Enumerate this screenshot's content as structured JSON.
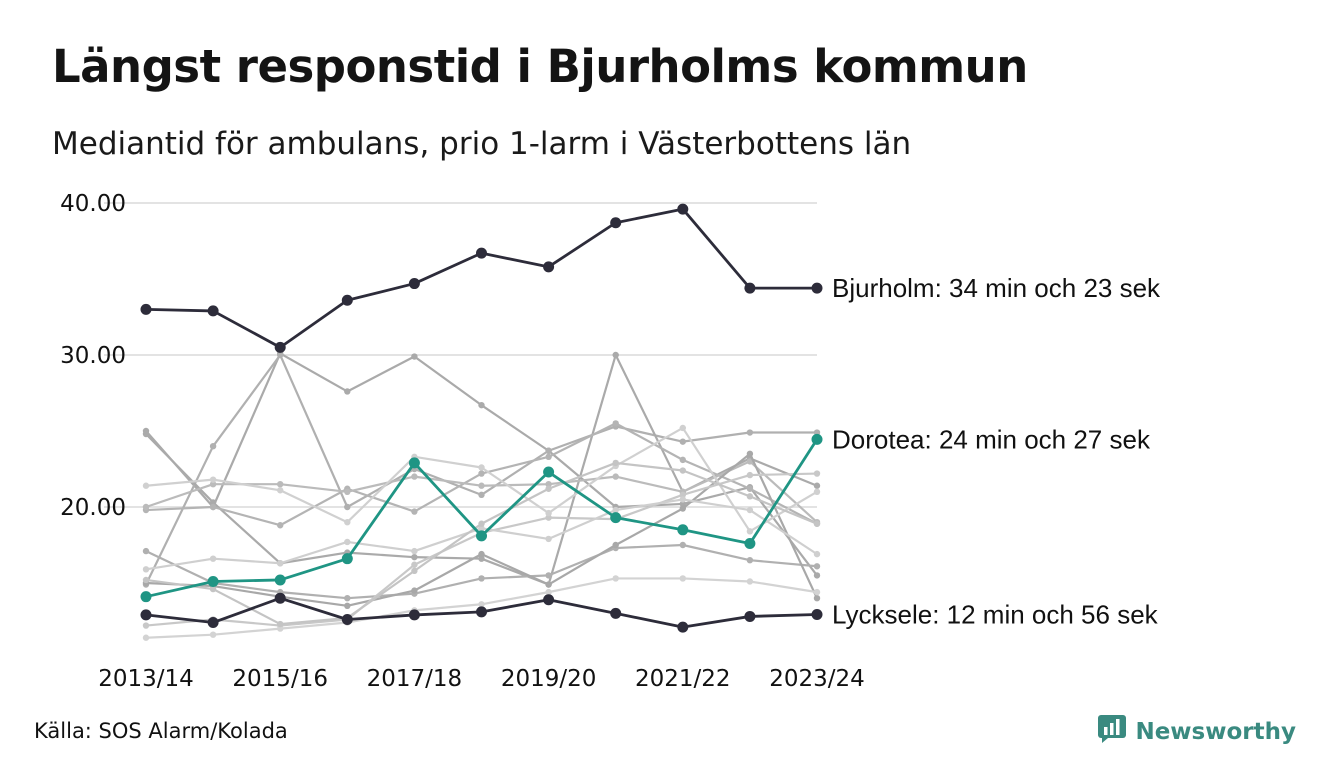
{
  "title": "Längst responstid i Bjurholms kommun",
  "subtitle": "Mediantid för ambulans, prio 1-larm i Västerbottens län",
  "source": "Källa: SOS Alarm/Kolada",
  "brand": {
    "name": "Newsworthy",
    "icon": "newsworthy-logo-icon",
    "color": "#3a8a80"
  },
  "chart_data": {
    "type": "line",
    "title": "Längst responstid i Bjurholms kommun",
    "subtitle": "Mediantid för ambulans, prio 1-larm i Västerbottens län",
    "x": [
      "2013/14",
      "2014/15",
      "2015/16",
      "2016/17",
      "2017/18",
      "2018/19",
      "2019/20",
      "2020/21",
      "2021/22",
      "2022/23",
      "2023/24"
    ],
    "x_tick_labels": [
      "2013/14",
      "2015/16",
      "2017/18",
      "2019/20",
      "2021/22",
      "2023/24"
    ],
    "y_ticks": [
      "20.00",
      "30.00",
      "40.00"
    ],
    "ylim": [
      11,
      41
    ],
    "grid": "horizontal",
    "legend": "none (direct labels at right)",
    "colors": {
      "highlight_dark": "#2d2c3a",
      "highlight_green": "#1f9584",
      "context_lines": [
        "#aaaaaa",
        "#b8b8b8",
        "#c6c6c6",
        "#d3d3d3"
      ],
      "grid": "#e3e3e3"
    },
    "highlighted_series": [
      {
        "name": "Bjurholm",
        "label": "Bjurholm: 34 min och 23 sek",
        "color": "#2d2c3a",
        "values": [
          33.0,
          32.9,
          30.5,
          33.6,
          34.7,
          36.7,
          35.8,
          38.7,
          39.6,
          34.4,
          34.4
        ]
      },
      {
        "name": "Dorotea",
        "label": "Dorotea: 24 min och 27 sek",
        "color": "#1f9584",
        "values": [
          14.1,
          15.1,
          15.2,
          16.6,
          22.9,
          18.1,
          22.3,
          19.3,
          18.5,
          17.6,
          24.45
        ]
      },
      {
        "name": "Lycksele",
        "label": "Lycksele: 12 min och 56 sek",
        "color": "#2d2c3a",
        "values": [
          12.9,
          12.4,
          14.0,
          12.6,
          12.9,
          13.1,
          13.9,
          13.0,
          12.1,
          12.8,
          12.93
        ]
      }
    ],
    "context_series": [
      {
        "values": [
          25.0,
          20.0,
          30.1,
          27.6,
          29.9,
          26.7,
          23.7,
          20.0,
          20.2,
          21.3,
          15.5
        ],
        "color": "#aaaaaa"
      },
      {
        "values": [
          14.9,
          24.0,
          30.0,
          20.0,
          22.5,
          20.8,
          23.7,
          25.3,
          24.3,
          24.9,
          24.9
        ],
        "color": "#b0b0b0"
      },
      {
        "values": [
          24.8,
          20.3,
          16.3,
          17.0,
          16.7,
          16.6,
          14.9,
          30.0,
          21.0,
          23.2,
          21.4
        ],
        "color": "#aaaaaa"
      },
      {
        "values": [
          19.8,
          20.0,
          18.8,
          21.2,
          19.7,
          22.2,
          23.3,
          25.5,
          23.1,
          21.2,
          18.9
        ],
        "color": "#b4b4b4"
      },
      {
        "values": [
          20.0,
          21.5,
          21.5,
          21.0,
          22.0,
          21.4,
          21.5,
          22.0,
          21.0,
          23.0,
          19.0
        ],
        "color": "#bbbbbb"
      },
      {
        "values": [
          17.1,
          15.0,
          14.4,
          14.0,
          14.3,
          15.3,
          15.5,
          17.3,
          17.5,
          16.5,
          16.1
        ],
        "color": "#b0b0b0"
      },
      {
        "values": [
          15.0,
          14.8,
          14.1,
          13.5,
          14.5,
          16.9,
          14.9,
          17.5,
          19.9,
          23.5,
          14.0
        ],
        "color": "#a8a8a8"
      },
      {
        "values": [
          12.2,
          12.6,
          12.2,
          12.6,
          16.2,
          18.3,
          19.3,
          19.2,
          20.8,
          22.1,
          22.2
        ],
        "color": "#c8c8c8"
      },
      {
        "values": [
          11.4,
          11.6,
          12.0,
          12.4,
          13.2,
          13.6,
          14.4,
          15.3,
          15.3,
          15.1,
          14.4
        ],
        "color": "#d3d3d3"
      },
      {
        "values": [
          21.4,
          21.8,
          21.1,
          19.0,
          23.3,
          22.6,
          19.6,
          22.7,
          25.2,
          18.4,
          21.0
        ],
        "color": "#d0d0d0"
      },
      {
        "values": [
          15.9,
          16.6,
          16.3,
          17.7,
          17.1,
          18.6,
          17.9,
          19.8,
          20.5,
          19.8,
          16.9
        ],
        "color": "#cfcfcf"
      },
      {
        "values": [
          15.2,
          14.6,
          12.3,
          12.7,
          15.8,
          18.9,
          21.2,
          22.9,
          22.4,
          20.7,
          18.9
        ],
        "color": "#c4c4c4"
      }
    ]
  }
}
